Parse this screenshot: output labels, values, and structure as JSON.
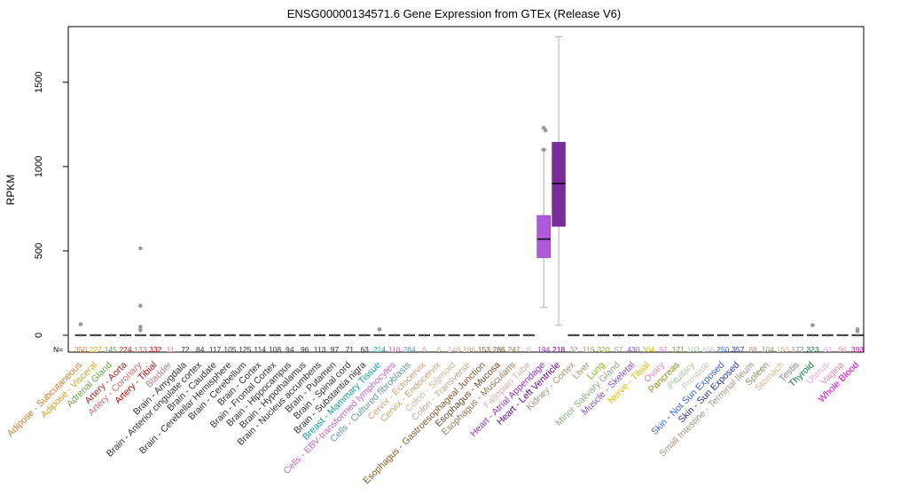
{
  "chart_data": {
    "type": "boxplot",
    "title": "ENSG00000134571.6 Gene Expression from GTEx (Release V6)",
    "ylabel": "RPKM",
    "xlabel": "",
    "ylim": [
      -100,
      1830
    ],
    "yticks": [
      0,
      500,
      1000,
      1500
    ],
    "n_prefix": "N=",
    "tissues": [
      {
        "name": "Adipose - Subcutaneous",
        "n": "350",
        "color": "#E07B30"
      },
      {
        "name": "Adipose - Visceral",
        "n": "227",
        "color": "#E0A020"
      },
      {
        "name": "Adrenal Gland",
        "n": "145",
        "color": "#6FA14C"
      },
      {
        "name": "Artery - Aorta",
        "n": "224",
        "color": "#B02020"
      },
      {
        "name": "Artery - Coronary",
        "n": "133",
        "color": "#D56565"
      },
      {
        "name": "Artery - Tibial",
        "n": "332",
        "color": "#CC0000"
      },
      {
        "name": "Bladder",
        "n": "11",
        "color": "#C08080"
      },
      {
        "name": "Brain - Amygdala",
        "n": "72",
        "color": "#333333"
      },
      {
        "name": "Brain - Anterior cingulate cortex",
        "n": "84",
        "color": "#333333"
      },
      {
        "name": "Brain - Caudate",
        "n": "117",
        "color": "#333333"
      },
      {
        "name": "Brain - Cerebellar Hemisphere",
        "n": "105",
        "color": "#333333"
      },
      {
        "name": "Brain - Cerebellum",
        "n": "125",
        "color": "#333333"
      },
      {
        "name": "Brain - Cortex",
        "n": "114",
        "color": "#333333"
      },
      {
        "name": "Brain - Frontal Cortex",
        "n": "108",
        "color": "#333333"
      },
      {
        "name": "Brain - Hippocampus",
        "n": "94",
        "color": "#333333"
      },
      {
        "name": "Brain - Hypothalamus",
        "n": "96",
        "color": "#333333"
      },
      {
        "name": "Brain - Nucleus accumbens",
        "n": "113",
        "color": "#333333"
      },
      {
        "name": "Brain - Putamen",
        "n": "97",
        "color": "#333333"
      },
      {
        "name": "Brain - Spinal cord",
        "n": "71",
        "color": "#333333"
      },
      {
        "name": "Brain - Substantia nigra",
        "n": "63",
        "color": "#333333"
      },
      {
        "name": "Breast - Mammary Tissue",
        "n": "214",
        "color": "#10A0A0"
      },
      {
        "name": "Cells - EBV-transformed lymphocytes",
        "n": "118",
        "color": "#CC66CC"
      },
      {
        "name": "Cells - Cultured fibroblasts",
        "n": "284",
        "color": "#6699AA"
      },
      {
        "name": "Cervix - Ectocervix",
        "n": "6",
        "color": "#D4A080"
      },
      {
        "name": "Cervix - Endocervix",
        "n": "5",
        "color": "#D4A070"
      },
      {
        "name": "Colon - Sigmoid",
        "n": "149",
        "color": "#D8B8A0"
      },
      {
        "name": "Colon - Transverse",
        "n": "196",
        "color": "#C8A890"
      },
      {
        "name": "Esophagus - Gastroesophageal Junction",
        "n": "153",
        "color": "#8B5A2B"
      },
      {
        "name": "Esophagus - Mucosa",
        "n": "286",
        "color": "#6B4A2B"
      },
      {
        "name": "Esophagus - Muscularis",
        "n": "247",
        "color": "#A07850"
      },
      {
        "name": "Fallopian Tube",
        "n": "6",
        "color": "#E0B0B0"
      },
      {
        "name": "Heart - Atrial Appendage",
        "n": "194",
        "color": "#9933CC"
      },
      {
        "name": "Heart - Left Ventricle",
        "n": "218",
        "color": "#660099"
      },
      {
        "name": "Kidney - Cortex",
        "n": "32",
        "color": "#B09080"
      },
      {
        "name": "Liver",
        "n": "119",
        "color": "#A8A070"
      },
      {
        "name": "Lung",
        "n": "320",
        "color": "#88BB22"
      },
      {
        "name": "Minor Salivary Gland",
        "n": "57",
        "color": "#99AA88"
      },
      {
        "name": "Muscle - Skeletal",
        "n": "430",
        "color": "#8855CC"
      },
      {
        "name": "Nerve - Tibial",
        "n": "304",
        "color": "#E0C000"
      },
      {
        "name": "Ovary",
        "n": "97",
        "color": "#F080C0"
      },
      {
        "name": "Pancreas",
        "n": "171",
        "color": "#998822"
      },
      {
        "name": "Pituitary",
        "n": "103",
        "color": "#AACC99"
      },
      {
        "name": "Prostate",
        "n": "106",
        "color": "#C8C8C8"
      },
      {
        "name": "Skin - Not Sun Exposed",
        "n": "250",
        "color": "#3366EE"
      },
      {
        "name": "Skin - Sun Exposed",
        "n": "357",
        "color": "#2233AA"
      },
      {
        "name": "Small Intestine - Terminal Ileum",
        "n": "88",
        "color": "#AA9988"
      },
      {
        "name": "Spleen",
        "n": "104",
        "color": "#889966"
      },
      {
        "name": "Stomach",
        "n": "193",
        "color": "#D8B890"
      },
      {
        "name": "Testis",
        "n": "172",
        "color": "#888888"
      },
      {
        "name": "Thyroid",
        "n": "323",
        "color": "#117733"
      },
      {
        "name": "Uterus",
        "n": "93",
        "color": "#EEAAEE"
      },
      {
        "name": "Vagina",
        "n": "96",
        "color": "#EE88AA"
      },
      {
        "name": "Whole Blood",
        "n": "393",
        "color": "#DD00DD"
      }
    ],
    "boxes": [
      {
        "tissue": "Heart - Atrial Appendage",
        "q1": 460,
        "median": 570,
        "q3": 710,
        "whisker_low": 165,
        "whisker_high": 1100,
        "outliers": [
          1230,
          1215,
          1100
        ],
        "fill": "#B05ADB"
      },
      {
        "tissue": "Heart - Left Ventricle",
        "q1": 645,
        "median": 900,
        "q3": 1145,
        "whisker_low": 60,
        "whisker_high": 1770,
        "outliers": [],
        "fill": "#7A2C9A"
      }
    ],
    "near_zero_outliers": [
      {
        "tissue": "Adipose - Subcutaneous",
        "values": [
          65
        ]
      },
      {
        "tissue": "Artery - Coronary",
        "values": [
          515,
          175,
          50,
          30
        ]
      },
      {
        "tissue": "Breast - Mammary Tissue",
        "values": [
          35
        ]
      },
      {
        "tissue": "Thyroid",
        "values": [
          60
        ]
      },
      {
        "tissue": "Whole Blood",
        "values": [
          35,
          25
        ]
      }
    ]
  }
}
